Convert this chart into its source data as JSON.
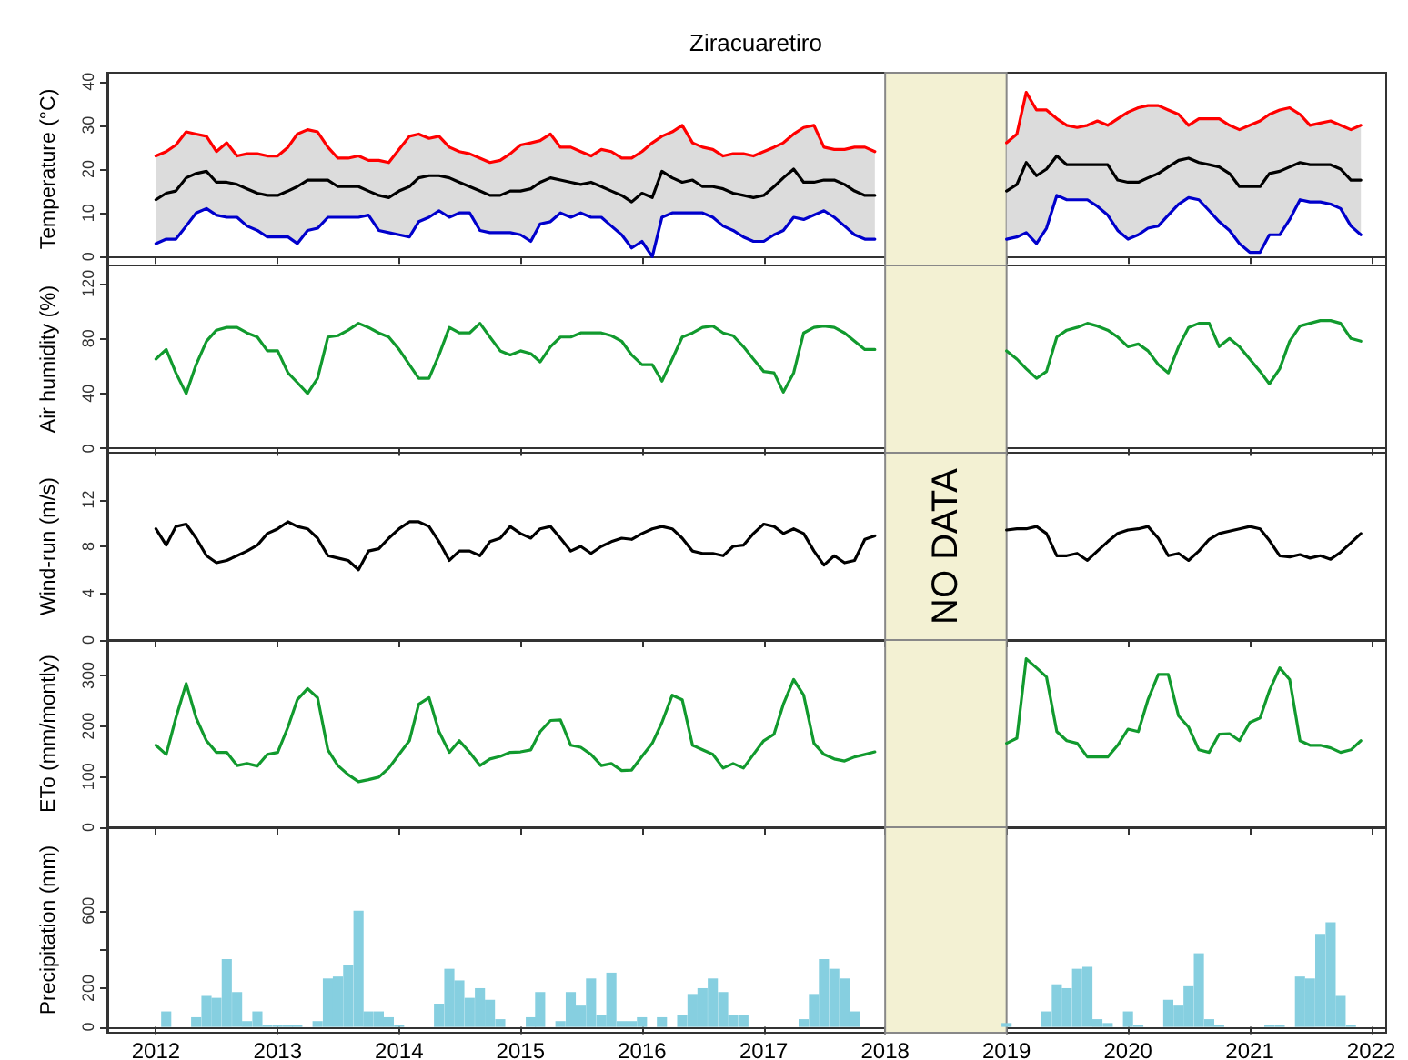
{
  "chart_data": [
    {
      "type": "line",
      "title": "Ziracuaretiro",
      "ylabel": "Temperature (°C)",
      "tick_labels": "y",
      "x": [
        "2012-01",
        "2012-02",
        "2012-03",
        "2012-04",
        "2012-05",
        "2012-06",
        "2012-07",
        "2012-08",
        "2012-09",
        "2012-10",
        "2012-11",
        "2012-12",
        "2013-01",
        "2013-02",
        "2013-03",
        "2013-04",
        "2013-05",
        "2013-06",
        "2013-07",
        "2013-08",
        "2013-09",
        "2013-10",
        "2013-11",
        "2013-12",
        "2014-01",
        "2014-02",
        "2014-03",
        "2014-04",
        "2014-05",
        "2014-06",
        "2014-07",
        "2014-08",
        "2014-09",
        "2014-10",
        "2014-11",
        "2014-12",
        "2015-01",
        "2015-02",
        "2015-03",
        "2015-04",
        "2015-05",
        "2015-06",
        "2015-07",
        "2015-08",
        "2015-09",
        "2015-10",
        "2015-11",
        "2015-12",
        "2016-01",
        "2016-02",
        "2016-03",
        "2016-04",
        "2016-05",
        "2016-06",
        "2016-07",
        "2016-08",
        "2016-09",
        "2016-10",
        "2016-11",
        "2016-12",
        "2017-01",
        "2017-02",
        "2017-03",
        "2017-04",
        "2017-05",
        "2017-06",
        "2017-07",
        "2017-08",
        "2017-09",
        "2017-10",
        "2017-11",
        "2017-12",
        "2018-07",
        "2019-01",
        "2019-02",
        "2019-03",
        "2019-04",
        "2019-05",
        "2019-06",
        "2019-07",
        "2019-08",
        "2019-09",
        "2019-10",
        "2019-11",
        "2019-12",
        "2020-01",
        "2020-02",
        "2020-03",
        "2020-04",
        "2020-05",
        "2020-06",
        "2020-07",
        "2020-08",
        "2020-09",
        "2020-10",
        "2020-11",
        "2020-12",
        "2021-01",
        "2021-02",
        "2021-03",
        "2021-04",
        "2021-05",
        "2021-06",
        "2021-07",
        "2021-08",
        "2021-09",
        "2021-10",
        "2021-11",
        "2021-12"
      ],
      "series": [
        {
          "color": "#ff0000",
          "values": [
            23,
            24,
            25.5,
            28.5,
            28,
            27.5,
            24,
            26,
            23,
            23.5,
            23.5,
            23,
            23,
            25,
            28,
            29,
            28.5,
            25,
            22.5,
            22.5,
            23,
            22,
            22,
            21.5,
            24.5,
            27.5,
            28,
            27,
            27.5,
            25,
            24,
            23.5,
            22.5,
            21.5,
            22,
            23.5,
            25.5,
            26,
            26.5,
            28,
            25,
            25,
            24,
            23,
            24.5,
            24,
            22.5,
            22.5,
            24,
            26,
            27.5,
            28.5,
            30,
            26,
            25,
            24.5,
            23,
            23.5,
            23.5,
            23,
            24,
            25,
            26,
            28,
            29.5,
            30,
            25,
            24.5,
            24.5,
            25,
            25,
            24,
            null,
            26,
            28,
            37.5,
            33.5,
            33.5,
            31.5,
            30,
            29.5,
            30,
            31,
            30,
            31.5,
            33,
            34,
            34.5,
            34.5,
            33.5,
            32.5,
            30,
            31.5,
            31.5,
            31.5,
            30,
            29,
            30,
            31,
            32.5,
            33.5,
            34,
            32.5,
            30,
            30.5,
            31,
            30,
            29,
            30
          ]
        },
        {
          "color": "#000000",
          "values": [
            13,
            14.5,
            15,
            18,
            19,
            19.5,
            17,
            17,
            16.5,
            15.5,
            14.5,
            14,
            14,
            15,
            16,
            17.5,
            17.5,
            17.5,
            16,
            16,
            16,
            15,
            14,
            13.5,
            15,
            16,
            18,
            18.5,
            18.5,
            18,
            17,
            16,
            15,
            14,
            14,
            15,
            15,
            15.5,
            17,
            18,
            17.5,
            17,
            16.5,
            17,
            16,
            15,
            14,
            12.5,
            14.5,
            13.5,
            19.5,
            18,
            17,
            17.5,
            16,
            16,
            15.5,
            14.5,
            14,
            13.5,
            14,
            16,
            18,
            20,
            17,
            17,
            17.5,
            17.5,
            16.5,
            15,
            14,
            14,
            null,
            15,
            16.5,
            21.5,
            18.5,
            20,
            23,
            21,
            21,
            21,
            21,
            21,
            17.5,
            17,
            17,
            18,
            19,
            20.5,
            22,
            22.5,
            21.5,
            21,
            20.5,
            19,
            16,
            16,
            16,
            19,
            19.5,
            20.5,
            21.5,
            21,
            21,
            21,
            20,
            17.5,
            17.5
          ],
          "lower": [
            3,
            4,
            4,
            7,
            10,
            11,
            9.5,
            9,
            9,
            7,
            6,
            4.5,
            4.5,
            4.5,
            3,
            6,
            6.5,
            9,
            9,
            9,
            9,
            9.5,
            6,
            5.5,
            5,
            4.5,
            8,
            9,
            10.5,
            9,
            10,
            10,
            6,
            5.5,
            5.5,
            5.5,
            5,
            3.5,
            7.5,
            8,
            10,
            9,
            10,
            9,
            9,
            7,
            5,
            2,
            3.5,
            0,
            9,
            10,
            10,
            10,
            10,
            9,
            7,
            6,
            4.5,
            3.5,
            3.5,
            5,
            6,
            9,
            8.5,
            9.5,
            10.5,
            9,
            7,
            5,
            4,
            4,
            null,
            4,
            4.5,
            5.5,
            3,
            6.5,
            14,
            13,
            13,
            13,
            11.5,
            9.5,
            6,
            4,
            5,
            6.5,
            7,
            9.5,
            12,
            13.5,
            13,
            10.5,
            8,
            6,
            3,
            1,
            1,
            5,
            5,
            8.5,
            13,
            12.5,
            12.5,
            12,
            11,
            7,
            5
          ],
          "upper": [
            23,
            24,
            25.5,
            28.5,
            28,
            27.5,
            24,
            26,
            23,
            23.5,
            23.5,
            23,
            23,
            25,
            28,
            29,
            28.5,
            25,
            22.5,
            22.5,
            23,
            22,
            22,
            21.5,
            24.5,
            27.5,
            28,
            27,
            27.5,
            25,
            24,
            23.5,
            22.5,
            21.5,
            22,
            23.5,
            25.5,
            26,
            26.5,
            28,
            25,
            25,
            24,
            23,
            24.5,
            24,
            22.5,
            22.5,
            24,
            26,
            27.5,
            28.5,
            30,
            26,
            25,
            24.5,
            23,
            23.5,
            23.5,
            23,
            24,
            25,
            26,
            28,
            29.5,
            30,
            25,
            24.5,
            24.5,
            25,
            25,
            24,
            null,
            26,
            28,
            37.5,
            33.5,
            33.5,
            31.5,
            30,
            29.5,
            30,
            31,
            30,
            31.5,
            33,
            34,
            34.5,
            34.5,
            33.5,
            32.5,
            30,
            31.5,
            31.5,
            31.5,
            30,
            29,
            30,
            31,
            32.5,
            33.5,
            34,
            32.5,
            30,
            30.5,
            31,
            30,
            29,
            30
          ]
        },
        {
          "color": "#0000cc",
          "values": [
            3,
            4,
            4,
            7,
            10,
            11,
            9.5,
            9,
            9,
            7,
            6,
            4.5,
            4.5,
            4.5,
            3,
            6,
            6.5,
            9,
            9,
            9,
            9,
            9.5,
            6,
            5.5,
            5,
            4.5,
            8,
            9,
            10.5,
            9,
            10,
            10,
            6,
            5.5,
            5.5,
            5.5,
            5,
            3.5,
            7.5,
            8,
            10,
            9,
            10,
            9,
            9,
            7,
            5,
            2,
            3.5,
            0,
            9,
            10,
            10,
            10,
            10,
            9,
            7,
            6,
            4.5,
            3.5,
            3.5,
            5,
            6,
            9,
            8.5,
            9.5,
            10.5,
            9,
            7,
            5,
            4,
            4,
            null,
            4,
            4.5,
            5.5,
            3,
            6.5,
            14,
            13,
            13,
            13,
            11.5,
            9.5,
            6,
            4,
            5,
            6.5,
            7,
            9.5,
            12,
            13.5,
            13,
            10.5,
            8,
            6,
            3,
            1,
            1,
            5,
            5,
            8.5,
            13,
            12.5,
            12.5,
            12,
            11,
            7,
            5
          ]
        }
      ],
      "xlim": [
        "2011-08-08",
        "2022-02-15"
      ],
      "xticks": [
        "2012",
        "2013",
        "2014",
        "2015",
        "2016",
        "2017",
        "2018",
        "2019",
        "2020",
        "2021",
        "2022"
      ],
      "ylim": [
        -2,
        42
      ],
      "yticks": [
        0,
        10,
        20,
        30,
        40
      ],
      "bands": [
        {
          "axis": "x",
          "from": "2018",
          "to": "2019",
          "color": "#f3f1d3"
        }
      ]
    },
    {
      "type": "line",
      "ylabel": "Air humidity (%)",
      "tick_labels": "y",
      "x": [
        "2012-01",
        "2012-02",
        "2012-03",
        "2012-04",
        "2012-05",
        "2012-06",
        "2012-07",
        "2012-08",
        "2012-09",
        "2012-10",
        "2012-11",
        "2012-12",
        "2013-01",
        "2013-02",
        "2013-03",
        "2013-04",
        "2013-05",
        "2013-06",
        "2013-07",
        "2013-08",
        "2013-09",
        "2013-10",
        "2013-11",
        "2013-12",
        "2014-01",
        "2014-02",
        "2014-03",
        "2014-04",
        "2014-05",
        "2014-06",
        "2014-07",
        "2014-08",
        "2014-09",
        "2014-10",
        "2014-11",
        "2014-12",
        "2015-01",
        "2015-02",
        "2015-03",
        "2015-04",
        "2015-05",
        "2015-06",
        "2015-07",
        "2015-08",
        "2015-09",
        "2015-10",
        "2015-11",
        "2015-12",
        "2016-01",
        "2016-02",
        "2016-03",
        "2016-04",
        "2016-05",
        "2016-06",
        "2016-07",
        "2016-08",
        "2016-09",
        "2016-10",
        "2016-11",
        "2016-12",
        "2017-01",
        "2017-02",
        "2017-03",
        "2017-04",
        "2017-05",
        "2017-06",
        "2017-07",
        "2017-08",
        "2017-09",
        "2017-10",
        "2017-11",
        "2017-12",
        "2018-07",
        "2019-01",
        "2019-02",
        "2019-03",
        "2019-04",
        "2019-05",
        "2019-06",
        "2019-07",
        "2019-08",
        "2019-09",
        "2019-10",
        "2019-11",
        "2019-12",
        "2020-01",
        "2020-02",
        "2020-03",
        "2020-04",
        "2020-05",
        "2020-06",
        "2020-07",
        "2020-08",
        "2020-09",
        "2020-10",
        "2020-11",
        "2020-12",
        "2021-01",
        "2021-02",
        "2021-03",
        "2021-04",
        "2021-05",
        "2021-06",
        "2021-07",
        "2021-08",
        "2021-09",
        "2021-10",
        "2021-11",
        "2021-12"
      ],
      "series": [
        {
          "color": "#119a2e",
          "values": [
            65,
            72,
            55,
            40,
            61,
            78,
            86,
            88,
            88,
            84,
            81,
            71,
            71,
            55,
            48,
            40,
            51,
            81,
            82,
            86,
            91,
            88,
            84,
            81,
            72,
            61,
            51,
            51,
            68,
            88,
            84,
            84,
            91,
            81,
            71,
            68,
            71,
            69,
            63,
            74,
            81,
            81,
            84,
            84,
            84,
            82,
            78,
            68,
            61,
            61,
            49,
            65,
            81,
            84,
            88,
            89,
            84,
            82,
            74,
            65,
            56,
            55,
            41,
            55,
            84,
            88,
            89,
            88,
            84,
            78,
            72,
            72,
            null,
            71,
            65,
            58,
            51,
            56,
            81,
            86,
            88,
            91,
            89,
            86,
            81,
            74,
            76,
            71,
            61,
            55,
            74,
            88,
            91,
            91,
            74,
            80,
            74,
            65,
            56,
            47,
            58,
            78,
            89,
            91,
            93,
            93,
            91,
            80,
            78
          ]
        }
      ],
      "xlim": [
        "2011-08-08",
        "2022-02-15"
      ],
      "xticks": [
        "2012",
        "2013",
        "2014",
        "2015",
        "2016",
        "2017",
        "2018",
        "2019",
        "2020",
        "2021",
        "2022"
      ],
      "ylim": [
        -3,
        133
      ],
      "yticks": [
        0,
        40,
        80,
        120
      ],
      "bands": [
        {
          "axis": "x",
          "from": "2018",
          "to": "2019",
          "color": "#f3f1d3"
        }
      ]
    },
    {
      "type": "line",
      "ylabel": "Wind-run (m/s)",
      "tick_labels": "y",
      "x": [
        "2012-01",
        "2012-02",
        "2012-03",
        "2012-04",
        "2012-05",
        "2012-06",
        "2012-07",
        "2012-08",
        "2012-09",
        "2012-10",
        "2012-11",
        "2012-12",
        "2013-01",
        "2013-02",
        "2013-03",
        "2013-04",
        "2013-05",
        "2013-06",
        "2013-07",
        "2013-08",
        "2013-09",
        "2013-10",
        "2013-11",
        "2013-12",
        "2014-01",
        "2014-02",
        "2014-03",
        "2014-04",
        "2014-05",
        "2014-06",
        "2014-07",
        "2014-08",
        "2014-09",
        "2014-10",
        "2014-11",
        "2014-12",
        "2015-01",
        "2015-02",
        "2015-03",
        "2015-04",
        "2015-05",
        "2015-06",
        "2015-07",
        "2015-08",
        "2015-09",
        "2015-10",
        "2015-11",
        "2015-12",
        "2016-01",
        "2016-02",
        "2016-03",
        "2016-04",
        "2016-05",
        "2016-06",
        "2016-07",
        "2016-08",
        "2016-09",
        "2016-10",
        "2016-11",
        "2016-12",
        "2017-01",
        "2017-02",
        "2017-03",
        "2017-04",
        "2017-05",
        "2017-06",
        "2017-07",
        "2017-08",
        "2017-09",
        "2017-10",
        "2017-11",
        "2017-12",
        "2018-07",
        "2019-01",
        "2019-02",
        "2019-03",
        "2019-04",
        "2019-05",
        "2019-06",
        "2019-07",
        "2019-08",
        "2019-09",
        "2019-10",
        "2019-11",
        "2019-12",
        "2020-01",
        "2020-02",
        "2020-03",
        "2020-04",
        "2020-05",
        "2020-06",
        "2020-07",
        "2020-08",
        "2020-09",
        "2020-10",
        "2020-11",
        "2020-12",
        "2021-01",
        "2021-02",
        "2021-03",
        "2021-04",
        "2021-05",
        "2021-06",
        "2021-07",
        "2021-08",
        "2021-09",
        "2021-10",
        "2021-11",
        "2021-12"
      ],
      "series": [
        {
          "color": "#000000",
          "values": [
            9.5,
            8.1,
            9.7,
            9.9,
            8.7,
            7.2,
            6.6,
            6.8,
            7.2,
            7.6,
            8.1,
            9.1,
            9.5,
            10.1,
            9.7,
            9.5,
            8.7,
            7.2,
            7,
            6.8,
            6,
            7.6,
            7.8,
            8.7,
            9.5,
            10.1,
            10.1,
            9.7,
            8.4,
            6.8,
            7.6,
            7.6,
            7.2,
            8.4,
            8.7,
            9.7,
            9.1,
            8.7,
            9.5,
            9.7,
            8.7,
            7.6,
            8,
            7.4,
            8,
            8.4,
            8.7,
            8.6,
            9.1,
            9.5,
            9.7,
            9.5,
            8.7,
            7.6,
            7.4,
            7.4,
            7.2,
            8,
            8.1,
            9.1,
            9.9,
            9.7,
            9.1,
            9.5,
            9.1,
            7.6,
            6.4,
            7.2,
            6.6,
            6.8,
            8.6,
            8.9,
            null,
            9.4,
            9.5,
            9.5,
            9.7,
            9.1,
            7.2,
            7.2,
            7.4,
            6.8,
            7.6,
            8.4,
            9.1,
            9.4,
            9.5,
            9.7,
            8.7,
            7.2,
            7.4,
            6.8,
            7.6,
            8.6,
            9.1,
            9.3,
            9.5,
            9.7,
            9.5,
            8.5,
            7.2,
            7.1,
            7.3,
            7,
            7.2,
            6.9,
            7.5,
            8.3,
            9.1
          ]
        }
      ],
      "xlim": [
        "2011-08-08",
        "2022-02-15"
      ],
      "xticks": [
        "2012",
        "2013",
        "2014",
        "2015",
        "2016",
        "2017",
        "2018",
        "2019",
        "2020",
        "2021",
        "2022"
      ],
      "ylim": [
        0,
        16
      ],
      "yticks": [
        0,
        4,
        8,
        12
      ],
      "bands": [
        {
          "axis": "x",
          "from": "2018",
          "to": "2019",
          "color": "#f3f1d3",
          "label": "NO DATA"
        }
      ]
    },
    {
      "type": "line",
      "ylabel": "ETo (mm/montly)",
      "tick_labels": "y",
      "x": [
        "2012-01",
        "2012-02",
        "2012-03",
        "2012-04",
        "2012-05",
        "2012-06",
        "2012-07",
        "2012-08",
        "2012-09",
        "2012-10",
        "2012-11",
        "2012-12",
        "2013-01",
        "2013-02",
        "2013-03",
        "2013-04",
        "2013-05",
        "2013-06",
        "2013-07",
        "2013-08",
        "2013-09",
        "2013-10",
        "2013-11",
        "2013-12",
        "2014-01",
        "2014-02",
        "2014-03",
        "2014-04",
        "2014-05",
        "2014-06",
        "2014-07",
        "2014-08",
        "2014-09",
        "2014-10",
        "2014-11",
        "2014-12",
        "2015-01",
        "2015-02",
        "2015-03",
        "2015-04",
        "2015-05",
        "2015-06",
        "2015-07",
        "2015-08",
        "2015-09",
        "2015-10",
        "2015-11",
        "2015-12",
        "2016-01",
        "2016-02",
        "2016-03",
        "2016-04",
        "2016-05",
        "2016-06",
        "2016-07",
        "2016-08",
        "2016-09",
        "2016-10",
        "2016-11",
        "2016-12",
        "2017-01",
        "2017-02",
        "2017-03",
        "2017-04",
        "2017-05",
        "2017-06",
        "2017-07",
        "2017-08",
        "2017-09",
        "2017-10",
        "2017-11",
        "2017-12",
        "2018-07",
        "2019-01",
        "2019-02",
        "2019-03",
        "2019-04",
        "2019-05",
        "2019-06",
        "2019-07",
        "2019-08",
        "2019-09",
        "2019-10",
        "2019-11",
        "2019-12",
        "2020-01",
        "2020-02",
        "2020-03",
        "2020-04",
        "2020-05",
        "2020-06",
        "2020-07",
        "2020-08",
        "2020-09",
        "2020-10",
        "2020-11",
        "2020-12",
        "2021-01",
        "2021-02",
        "2021-03",
        "2021-04",
        "2021-05",
        "2021-06",
        "2021-07",
        "2021-08",
        "2021-09",
        "2021-10",
        "2021-11",
        "2021-12"
      ],
      "series": [
        {
          "color": "#119a2e",
          "values": [
            162,
            144,
            216,
            284,
            216,
            171,
            148,
            148,
            122,
            126,
            121,
            144,
            148,
            198,
            252,
            274,
            256,
            153,
            122,
            104,
            90,
            94,
            99,
            117,
            144,
            171,
            243,
            256,
            189,
            148,
            171,
            148,
            122,
            135,
            140,
            148,
            149,
            153,
            189,
            211,
            212,
            162,
            158,
            144,
            122,
            126,
            112,
            113,
            140,
            166,
            207,
            261,
            252,
            162,
            153,
            144,
            117,
            126,
            117,
            144,
            171,
            184,
            243,
            292,
            261,
            166,
            144,
            135,
            131,
            139,
            144,
            149,
            null,
            166,
            176,
            333,
            315,
            297,
            189,
            171,
            166,
            139,
            139,
            139,
            162,
            194,
            189,
            252,
            302,
            302,
            220,
            198,
            153,
            148,
            184,
            185,
            171,
            207,
            216,
            270,
            315,
            292,
            171,
            162,
            162,
            157,
            148,
            153,
            171
          ]
        }
      ],
      "xlim": [
        "2011-08-08",
        "2022-02-15"
      ],
      "xticks": [
        "2012",
        "2013",
        "2014",
        "2015",
        "2016",
        "2017",
        "2018",
        "2019",
        "2020",
        "2021",
        "2022"
      ],
      "ylim": [
        0,
        370
      ],
      "yticks": [
        0,
        100,
        200,
        300
      ],
      "bands": [
        {
          "axis": "x",
          "from": "2018",
          "to": "2019",
          "color": "#f3f1d3"
        }
      ]
    },
    {
      "type": "bar",
      "ylabel": "Precipitation (mm)",
      "x": [
        "2012-01",
        "2012-02",
        "2012-03",
        "2012-04",
        "2012-05",
        "2012-06",
        "2012-07",
        "2012-08",
        "2012-09",
        "2012-10",
        "2012-11",
        "2012-12",
        "2013-01",
        "2013-02",
        "2013-03",
        "2013-04",
        "2013-05",
        "2013-06",
        "2013-07",
        "2013-08",
        "2013-09",
        "2013-10",
        "2013-11",
        "2013-12",
        "2014-01",
        "2014-02",
        "2014-03",
        "2014-04",
        "2014-05",
        "2014-06",
        "2014-07",
        "2014-08",
        "2014-09",
        "2014-10",
        "2014-11",
        "2014-12",
        "2015-01",
        "2015-02",
        "2015-03",
        "2015-04",
        "2015-05",
        "2015-06",
        "2015-07",
        "2015-08",
        "2015-09",
        "2015-10",
        "2015-11",
        "2015-12",
        "2016-01",
        "2016-02",
        "2016-03",
        "2016-04",
        "2016-05",
        "2016-06",
        "2016-07",
        "2016-08",
        "2016-09",
        "2016-10",
        "2016-11",
        "2016-12",
        "2017-01",
        "2017-02",
        "2017-03",
        "2017-04",
        "2017-05",
        "2017-06",
        "2017-07",
        "2017-08",
        "2017-09",
        "2017-10",
        "2017-11",
        "2017-12",
        "2018-07",
        "2019-01",
        "2019-02",
        "2019-03",
        "2019-04",
        "2019-05",
        "2019-06",
        "2019-07",
        "2019-08",
        "2019-09",
        "2019-10",
        "2019-11",
        "2019-12",
        "2020-01",
        "2020-02",
        "2020-03",
        "2020-04",
        "2020-05",
        "2020-06",
        "2020-07",
        "2020-08",
        "2020-09",
        "2020-10",
        "2020-11",
        "2020-12",
        "2021-01",
        "2021-02",
        "2021-03",
        "2021-04",
        "2021-05",
        "2021-06",
        "2021-07",
        "2021-08",
        "2021-09",
        "2021-10",
        "2021-11",
        "2021-12"
      ],
      "series": [
        {
          "color": "#86cfe0",
          "values": [
            0,
            80,
            0,
            0,
            50,
            160,
            150,
            350,
            180,
            30,
            80,
            10,
            10,
            10,
            10,
            0,
            30,
            250,
            260,
            320,
            600,
            80,
            80,
            50,
            10,
            0,
            0,
            0,
            120,
            300,
            240,
            150,
            200,
            140,
            40,
            0,
            0,
            50,
            180,
            0,
            30,
            180,
            110,
            250,
            60,
            280,
            30,
            30,
            50,
            0,
            50,
            0,
            60,
            170,
            200,
            250,
            180,
            60,
            60,
            0,
            0,
            0,
            0,
            0,
            40,
            170,
            350,
            300,
            250,
            80,
            0,
            0,
            null,
            20,
            0,
            0,
            0,
            80,
            220,
            200,
            300,
            310,
            40,
            20,
            0,
            80,
            10,
            0,
            0,
            140,
            110,
            210,
            380,
            40,
            10,
            0,
            0,
            0,
            0,
            10,
            10,
            0,
            260,
            250,
            480,
            540,
            160,
            10,
            0
          ]
        }
      ],
      "xlim": [
        "2011-08-08",
        "2022-02-15"
      ],
      "xticks": [
        "2012",
        "2013",
        "2014",
        "2015",
        "2016",
        "2017",
        "2018",
        "2019",
        "2020",
        "2021",
        "2022"
      ],
      "ylim": [
        -30,
        1030
      ],
      "yticks": [
        0,
        200,
        {
          "value": 400,
          "label": null
        },
        600
      ],
      "bands": [
        {
          "axis": "x",
          "from": "2018",
          "to": "2019",
          "color": "#f3f1d3"
        }
      ]
    }
  ]
}
